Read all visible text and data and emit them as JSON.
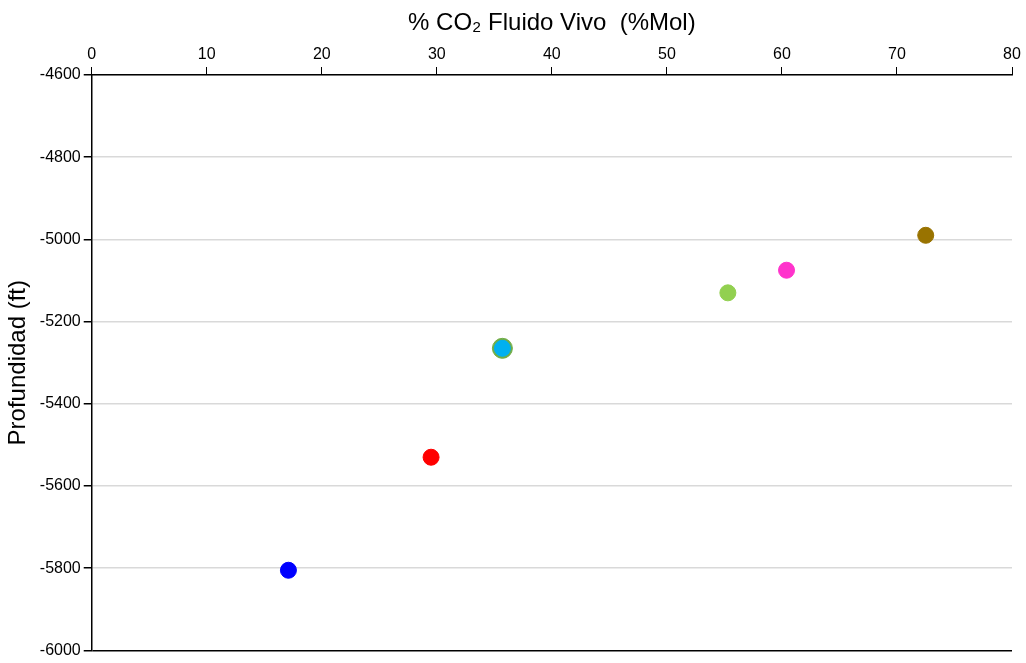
{
  "chart_data": {
    "type": "scatter",
    "xlabel": "% CO₂ Fluido Vivo  (%Mol)",
    "ylabel": "Profundidad (ft)",
    "x": [
      17.1,
      29.5,
      35.7,
      35.7,
      55.3,
      60.4,
      72.5
    ],
    "values": [
      -5805,
      -5530,
      -5265,
      -5265,
      -5130,
      -5075,
      -4990
    ],
    "colors": [
      "#0000ff",
      "#ff0000",
      "#70ad47",
      "#00b0f0",
      "#92d050",
      "#ff33cc",
      "#997300"
    ],
    "xlim": [
      0,
      80
    ],
    "xticks": [
      0,
      10,
      20,
      30,
      40,
      50,
      60,
      70,
      80
    ],
    "ylim": [
      -6000,
      -4600
    ],
    "yticks": [
      -6000,
      -5800,
      -5600,
      -5400,
      -5200,
      -5000,
      -4800,
      -4600
    ],
    "grid": "y",
    "marker": "circle",
    "legend": false
  }
}
